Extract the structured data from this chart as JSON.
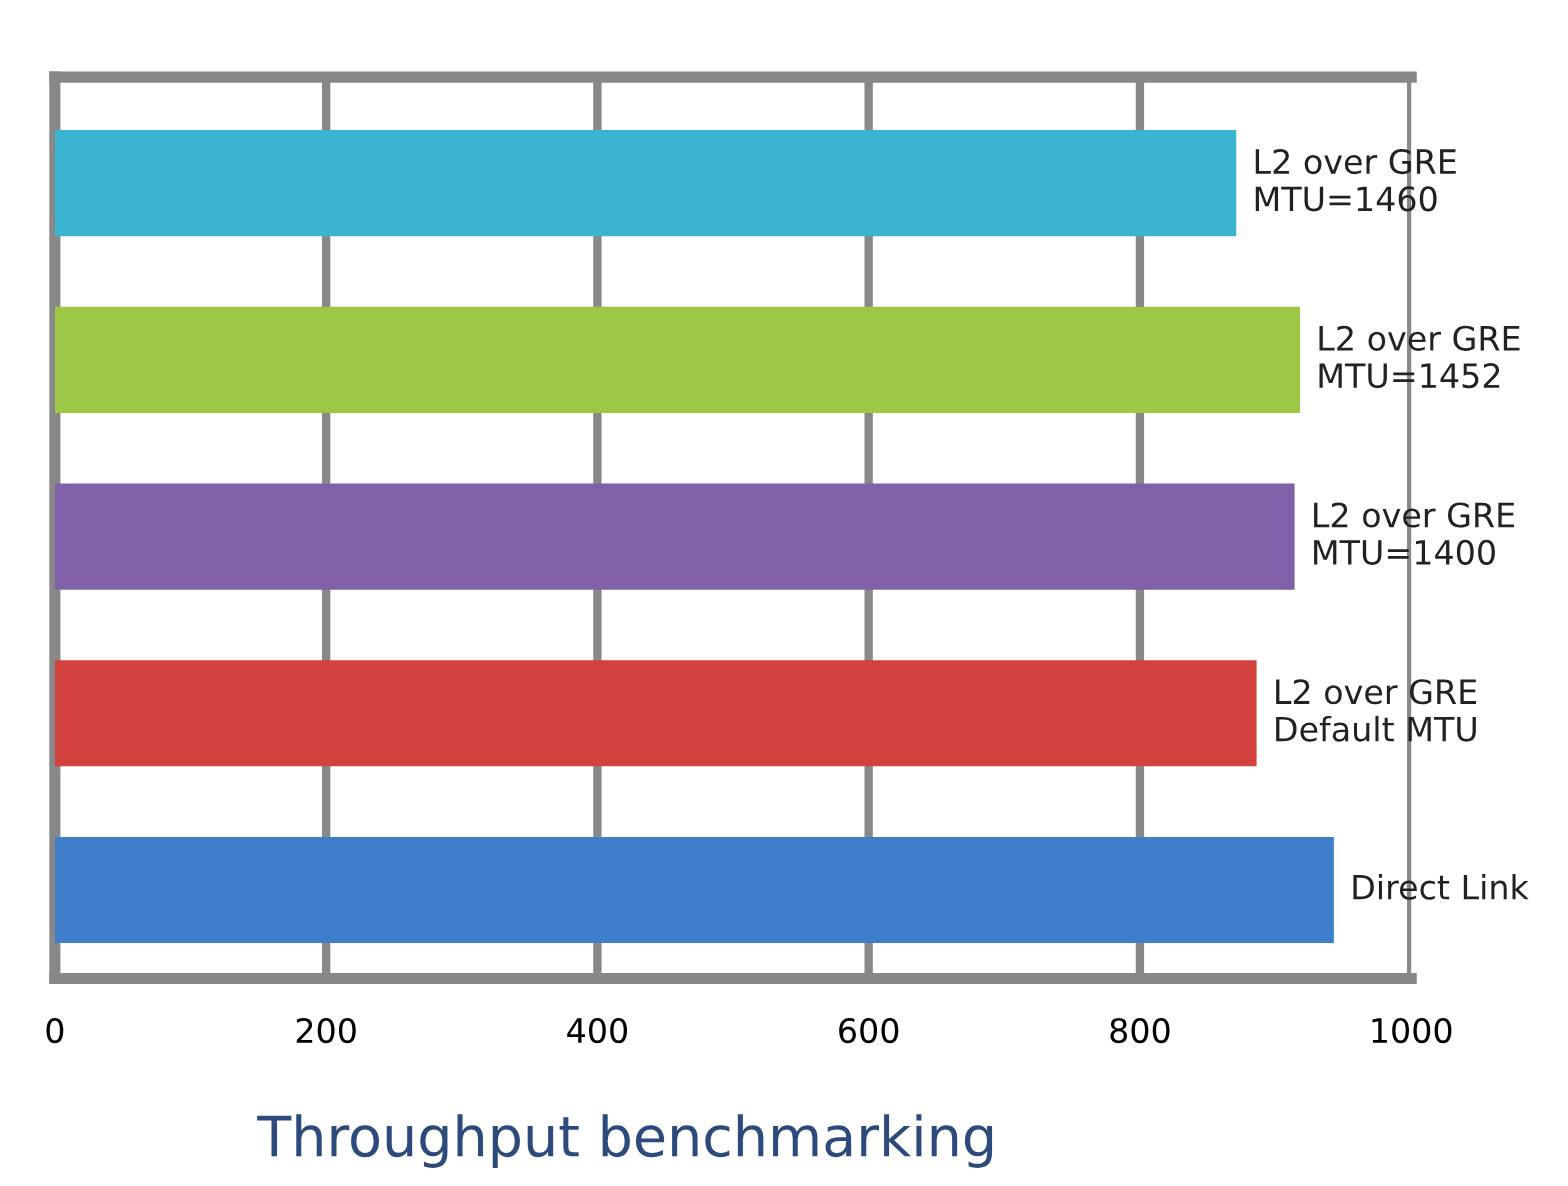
{
  "chart_data": {
    "type": "bar",
    "orientation": "horizontal",
    "title": "Throughput benchmarking",
    "categories": [
      "L2 over GRE\nMTU=1460",
      "L2 over GRE\nMTU=1452",
      "L2 over GRE\nMTU=1400",
      "L2 over GRE\nDefault MTU",
      "Direct Link"
    ],
    "values": [
      871,
      918,
      914,
      886,
      943
    ],
    "colors": [
      "#3bb4d2",
      "#9cc845",
      "#8060a8",
      "#d2413e",
      "#3f7ecb"
    ],
    "xlim": [
      0,
      1000
    ],
    "xticks": [
      0,
      200,
      400,
      600,
      800,
      1000
    ],
    "grid": "x"
  }
}
